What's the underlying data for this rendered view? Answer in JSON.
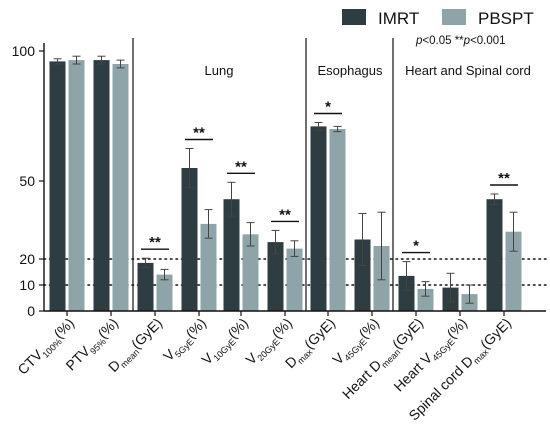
{
  "chart_data": {
    "type": "bar",
    "title": "",
    "xlabel": "",
    "ylabel": "",
    "ylim": [
      0,
      100
    ],
    "yticks": [
      0,
      10,
      20,
      50,
      100
    ],
    "reference_lines": [
      10,
      20
    ],
    "legend": {
      "position": "top-right",
      "entries": [
        "IMRT",
        "PBSPT"
      ]
    },
    "note": {
      "p1": "p",
      "t1": "<0.05 **",
      "p2": "p",
      "t2": "<0.001"
    },
    "colors": {
      "IMRT": "#2d3d42",
      "PBSPT": "#8ea4a8"
    },
    "sections": [
      {
        "label": "Lung",
        "start": 2,
        "end": 6
      },
      {
        "label": "Esophagus",
        "start": 6,
        "end": 8
      },
      {
        "label": "Heart and Spinal cord",
        "start": 8,
        "end": 11
      }
    ],
    "categories": [
      {
        "main": "CTV",
        "sub": "100%",
        "suffix": "(%)"
      },
      {
        "main": "PTV",
        "sub": "95%",
        "suffix": "(%)"
      },
      {
        "main": "D",
        "sub": "mean",
        "suffix": "(GyE)"
      },
      {
        "main": "V",
        "sub": "5GyE",
        "suffix": "(%)"
      },
      {
        "main": "V",
        "sub": "10GyE",
        "suffix": "(%)"
      },
      {
        "main": "V",
        "sub": "20GyE",
        "suffix": "(%)"
      },
      {
        "main": "D",
        "sub": "max",
        "suffix": "(GyE)"
      },
      {
        "main": "V",
        "sub": "45GyE",
        "suffix": "(%)"
      },
      {
        "main": "Heart D",
        "sub": "mean",
        "suffix": "(GyE)"
      },
      {
        "main": "Heart V",
        "sub": "45GyE",
        "suffix": "(%)"
      },
      {
        "main": "Spinal cord D",
        "sub": "max",
        "suffix": "(GyE)"
      }
    ],
    "series": [
      {
        "name": "IMRT",
        "values": [
          96,
          96.5,
          18.5,
          55,
          43,
          26.5,
          71,
          27.5,
          13.5,
          9,
          43
        ],
        "errors": [
          1,
          1.5,
          1.8,
          7.5,
          6.5,
          4.5,
          1.5,
          10,
          5.5,
          5.5,
          2
        ]
      },
      {
        "name": "PBSPT",
        "values": [
          96.5,
          95,
          14,
          33.5,
          29.5,
          24,
          70,
          25,
          8.5,
          6.5,
          30.5
        ],
        "errors": [
          1.5,
          1.5,
          2,
          5.5,
          4.5,
          3,
          1,
          13,
          2.8,
          3.5,
          7.5
        ]
      }
    ],
    "significance": [
      {
        "category": 2,
        "label": "**"
      },
      {
        "category": 3,
        "label": "**"
      },
      {
        "category": 4,
        "label": "**"
      },
      {
        "category": 5,
        "label": "**"
      },
      {
        "category": 6,
        "label": "*"
      },
      {
        "category": 8,
        "label": "*"
      },
      {
        "category": 10,
        "label": "**"
      }
    ]
  }
}
